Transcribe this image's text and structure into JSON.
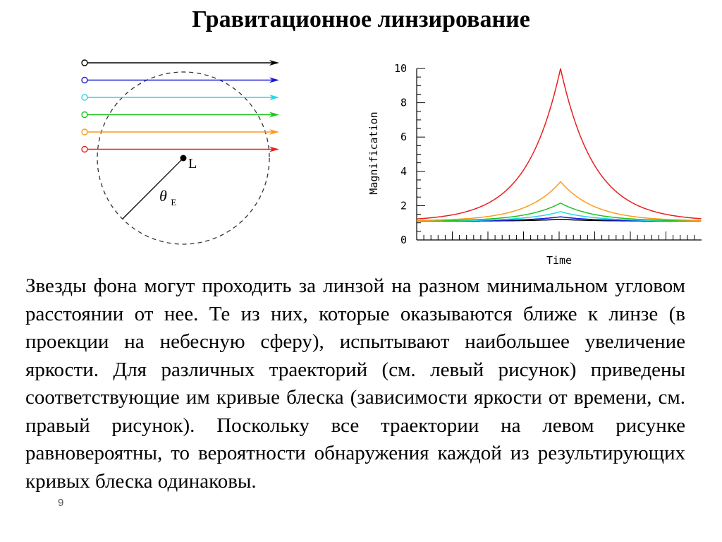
{
  "slide": {
    "title": "Гравитационное линзирование",
    "body": "Звезды фона могут проходить за линзой на разном минимальном угловом расстоянии от нее. Те из них, которые оказываются ближе к линзе (в проекции на небесную сферу), испытывают наибольшее увеличение яркости. Для различных траекторий (см. левый рисунок) приведены соответствующие им кривые блеска (зависимости яркости от времени, см. правый рисунок). Поскольку все траектории на левом рисунке равновероятны, то вероятности обнаружения каждой из результирующих кривых блеска одинаковы.",
    "page_number": "9"
  },
  "diagram": {
    "lens_label": "L",
    "radius_symbol": "θ",
    "radius_subscript": "E",
    "trajectory_colors": [
      "#000000",
      "#1a1ad6",
      "#22d8e8",
      "#1fc41f",
      "#ff9a1a",
      "#e82020"
    ]
  },
  "chart_data": {
    "type": "line",
    "title": "",
    "xlabel": "Time",
    "ylabel": "Magnification",
    "ylim": [
      0,
      10
    ],
    "yticks": [
      "0",
      "2",
      "4",
      "6",
      "8",
      "10"
    ],
    "series": [
      {
        "color": "#e82020",
        "peak": 10.0,
        "base": 1.1
      },
      {
        "color": "#ff9a1a",
        "peak": 3.4,
        "base": 1.1
      },
      {
        "color": "#1fc41f",
        "peak": 2.15,
        "base": 1.1
      },
      {
        "color": "#22d8e8",
        "peak": 1.65,
        "base": 1.1
      },
      {
        "color": "#1a1ad6",
        "peak": 1.35,
        "base": 1.1
      },
      {
        "color": "#000000",
        "peak": 1.2,
        "base": 1.1
      }
    ]
  }
}
